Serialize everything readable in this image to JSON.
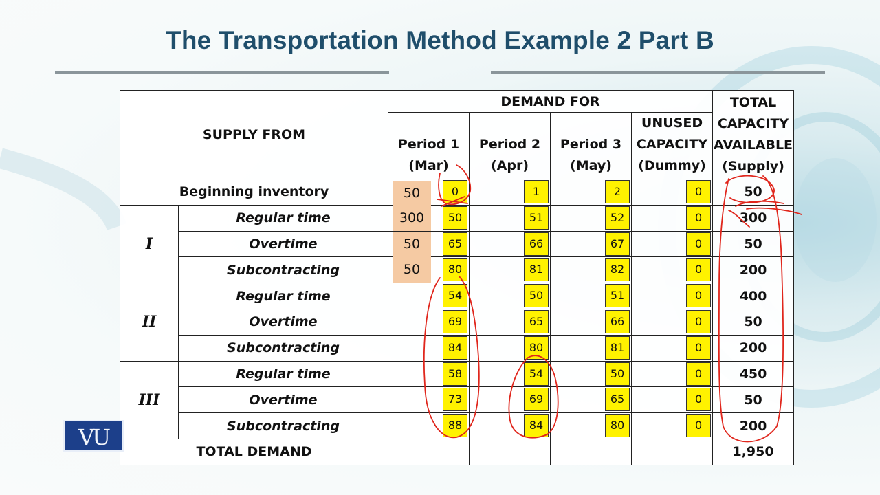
{
  "title": "The Transportation Method Example 2 Part B",
  "logo": "VU",
  "header": {
    "supply_from": "SUPPLY FROM",
    "demand_for": "DEMAND FOR",
    "total_capacity": [
      "TOTAL",
      "CAPACITY",
      "AVAILABLE",
      "(Supply)"
    ],
    "columns": [
      {
        "line1": "Period 1",
        "line2": "(Mar)"
      },
      {
        "line1": "Period 2",
        "line2": "(Apr)"
      },
      {
        "line1": "Period 3",
        "line2": "(May)"
      },
      {
        "line1": "UNUSED",
        "line2": "CAPACITY",
        "line3": "(Dummy)"
      }
    ]
  },
  "beginning": {
    "label": "Beginning inventory",
    "alloc": "50",
    "costs": [
      "0",
      "1",
      "2",
      "0"
    ],
    "capacity": "50"
  },
  "groups": [
    {
      "name": "I",
      "rows": [
        {
          "label": "Regular time",
          "alloc": "300",
          "costs": [
            "50",
            "51",
            "52",
            "0"
          ],
          "capacity": "300"
        },
        {
          "label": "Overtime",
          "alloc": "50",
          "costs": [
            "65",
            "66",
            "67",
            "0"
          ],
          "capacity": "50"
        },
        {
          "label": "Subcontracting",
          "alloc": "50",
          "costs": [
            "80",
            "81",
            "82",
            "0"
          ],
          "capacity": "200"
        }
      ]
    },
    {
      "name": "II",
      "rows": [
        {
          "label": "Regular time",
          "costs": [
            "54",
            "50",
            "51",
            "0"
          ],
          "capacity": "400"
        },
        {
          "label": "Overtime",
          "costs": [
            "69",
            "65",
            "66",
            "0"
          ],
          "capacity": "50"
        },
        {
          "label": "Subcontracting",
          "costs": [
            "84",
            "80",
            "81",
            "0"
          ],
          "capacity": "200"
        }
      ]
    },
    {
      "name": "III",
      "rows": [
        {
          "label": "Regular time",
          "costs": [
            "58",
            "54",
            "50",
            "0"
          ],
          "capacity": "450"
        },
        {
          "label": "Overtime",
          "costs": [
            "73",
            "69",
            "65",
            "0"
          ],
          "capacity": "50"
        },
        {
          "label": "Subcontracting",
          "costs": [
            "88",
            "84",
            "80",
            "0"
          ],
          "capacity": "200"
        }
      ]
    }
  ],
  "total_demand": {
    "label": "TOTAL DEMAND",
    "value": "1,950"
  }
}
